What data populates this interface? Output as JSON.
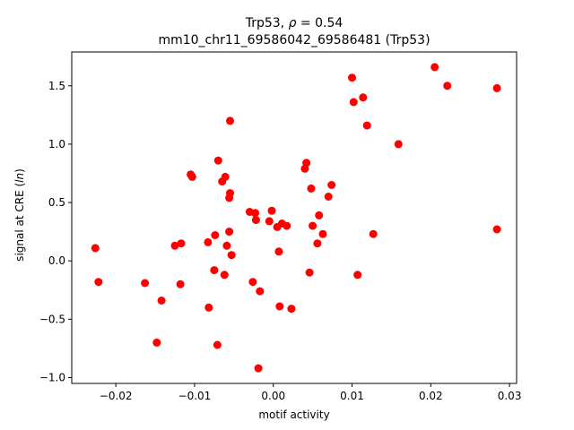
{
  "chart_data": {
    "type": "scatter",
    "title_line1": "Trp53, ρ = 0.54",
    "title_line2": "mm10_chr11_69586042_69586481 (Trp53)",
    "xlabel": "motif activity",
    "ylabel": "signal at CRE (ln)",
    "xlim": [
      -0.0256,
      0.0309
    ],
    "ylim": [
      -1.05,
      1.79
    ],
    "x_ticks": [
      -0.02,
      -0.01,
      0.0,
      0.01,
      0.02,
      0.03
    ],
    "x_tick_labels": [
      "−0.02",
      "−0.01",
      "0.00",
      "0.01",
      "0.02",
      "0.03"
    ],
    "y_ticks": [
      -1.0,
      -0.5,
      0.0,
      0.5,
      1.0,
      1.5
    ],
    "y_tick_labels": [
      "−1.0",
      "−0.5",
      "0.0",
      "0.5",
      "1.0",
      "1.5"
    ],
    "marker_color": "#ff0000",
    "grid": false,
    "series": [
      {
        "points": [
          [
            -0.0226,
            0.11
          ],
          [
            -0.0222,
            -0.18
          ],
          [
            -0.0163,
            -0.19
          ],
          [
            -0.0148,
            -0.7
          ],
          [
            -0.0142,
            -0.34
          ],
          [
            -0.0125,
            0.13
          ],
          [
            -0.0118,
            -0.2
          ],
          [
            -0.0117,
            0.15
          ],
          [
            -0.0105,
            0.74
          ],
          [
            -0.0103,
            0.72
          ],
          [
            -0.0083,
            0.16
          ],
          [
            -0.0082,
            -0.4
          ],
          [
            -0.0075,
            -0.08
          ],
          [
            -0.0074,
            0.22
          ],
          [
            -0.0071,
            -0.72
          ],
          [
            -0.007,
            0.86
          ],
          [
            -0.0065,
            0.68
          ],
          [
            -0.0062,
            -0.12
          ],
          [
            -0.0061,
            0.72
          ],
          [
            -0.0059,
            0.13
          ],
          [
            -0.0056,
            0.25
          ],
          [
            -0.0056,
            0.54
          ],
          [
            -0.0055,
            0.58
          ],
          [
            -0.0055,
            1.2
          ],
          [
            -0.0053,
            0.05
          ],
          [
            -0.003,
            0.42
          ],
          [
            -0.0026,
            -0.18
          ],
          [
            -0.0023,
            0.41
          ],
          [
            -0.0022,
            0.35
          ],
          [
            -0.0019,
            -0.92
          ],
          [
            -0.0017,
            -0.26
          ],
          [
            -0.0005,
            0.34
          ],
          [
            -0.0002,
            0.43
          ],
          [
            0.0005,
            0.29
          ],
          [
            0.0007,
            0.08
          ],
          [
            0.0008,
            -0.39
          ],
          [
            0.0011,
            0.32
          ],
          [
            0.0017,
            0.3
          ],
          [
            0.0023,
            -0.41
          ],
          [
            0.004,
            0.79
          ],
          [
            0.0042,
            0.84
          ],
          [
            0.0046,
            -0.1
          ],
          [
            0.0048,
            0.62
          ],
          [
            0.005,
            0.3
          ],
          [
            0.0056,
            0.15
          ],
          [
            0.0058,
            0.39
          ],
          [
            0.0063,
            0.23
          ],
          [
            0.007,
            0.55
          ],
          [
            0.0074,
            0.65
          ],
          [
            0.01,
            1.57
          ],
          [
            0.0102,
            1.36
          ],
          [
            0.0107,
            -0.12
          ],
          [
            0.0114,
            1.4
          ],
          [
            0.0119,
            1.16
          ],
          [
            0.0127,
            0.23
          ],
          [
            0.0159,
            1.0
          ],
          [
            0.0205,
            1.66
          ],
          [
            0.0221,
            1.5
          ],
          [
            0.0284,
            1.48
          ],
          [
            0.0284,
            0.27
          ]
        ]
      }
    ]
  }
}
